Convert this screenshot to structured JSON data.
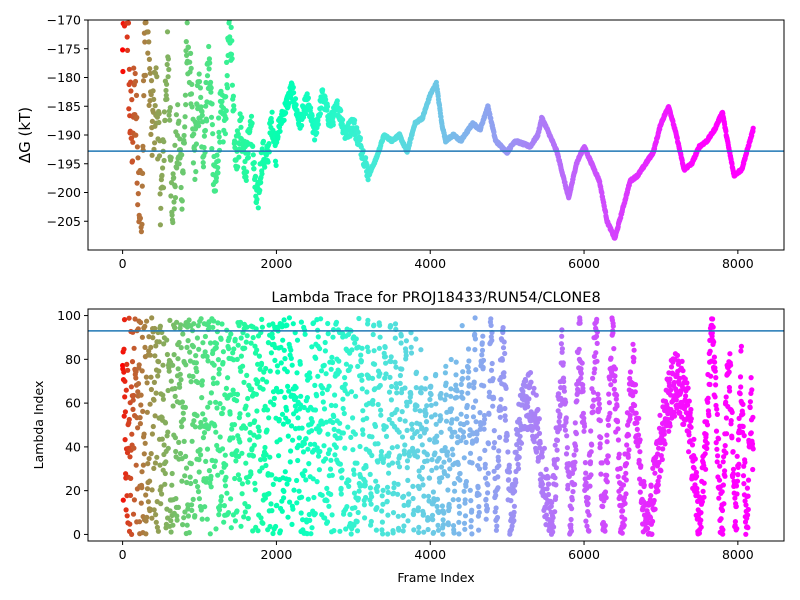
{
  "chart_data": [
    {
      "type": "scatter",
      "title": "",
      "xlabel": "",
      "ylabel": "ΔG (kT)",
      "xlim": [
        -450,
        8600
      ],
      "ylim": [
        -210,
        -170
      ],
      "xticks": [
        0,
        2000,
        4000,
        6000,
        8000
      ],
      "yticks": [
        -170,
        -175,
        -180,
        -185,
        -190,
        -195,
        -200,
        -205
      ],
      "xtick_labels": [
        "0",
        "2000",
        "4000",
        "6000",
        "8000"
      ],
      "ytick_labels": [
        "−170",
        "−175",
        "−180",
        "−185",
        "−190",
        "−195",
        "−200",
        "−205"
      ],
      "hline": -192.8,
      "hline_color": "#1f77b4",
      "colormap": "rainbow (red at frame 0 to purple at last frame)",
      "n_frames": 8200,
      "trace": [
        [
          0,
          -178
        ],
        [
          200,
          -190
        ],
        [
          400,
          -182
        ],
        [
          600,
          -195
        ],
        [
          800,
          -188
        ],
        [
          1000,
          -184
        ],
        [
          1200,
          -192
        ],
        [
          1400,
          -180
        ],
        [
          1600,
          -194
        ],
        [
          1800,
          -196
        ],
        [
          2000,
          -190
        ],
        [
          2100,
          -186
        ],
        [
          2200,
          -182
        ],
        [
          2300,
          -188
        ],
        [
          2400,
          -184
        ],
        [
          2500,
          -190
        ],
        [
          2600,
          -183
        ],
        [
          2700,
          -188
        ],
        [
          2800,
          -185
        ],
        [
          2900,
          -190
        ],
        [
          3000,
          -188
        ],
        [
          3100,
          -192
        ],
        [
          3200,
          -197
        ],
        [
          3300,
          -194
        ],
        [
          3400,
          -190
        ],
        [
          3500,
          -191
        ],
        [
          3600,
          -190
        ],
        [
          3700,
          -193
        ],
        [
          3800,
          -188
        ],
        [
          3900,
          -187
        ],
        [
          4000,
          -183
        ],
        [
          4080,
          -181
        ],
        [
          4150,
          -188
        ],
        [
          4200,
          -191
        ],
        [
          4300,
          -190
        ],
        [
          4400,
          -191
        ],
        [
          4550,
          -188
        ],
        [
          4650,
          -189
        ],
        [
          4750,
          -185
        ],
        [
          4850,
          -191
        ],
        [
          5000,
          -193
        ],
        [
          5100,
          -191
        ],
        [
          5300,
          -192
        ],
        [
          5400,
          -190
        ],
        [
          5450,
          -187
        ],
        [
          5520,
          -189
        ],
        [
          5650,
          -193
        ],
        [
          5800,
          -201
        ],
        [
          5900,
          -195
        ],
        [
          6000,
          -192
        ],
        [
          6100,
          -195
        ],
        [
          6200,
          -198
        ],
        [
          6300,
          -205
        ],
        [
          6400,
          -208
        ],
        [
          6500,
          -203
        ],
        [
          6600,
          -198
        ],
        [
          6700,
          -197
        ],
        [
          6900,
          -193
        ],
        [
          7000,
          -188
        ],
        [
          7100,
          -185
        ],
        [
          7200,
          -190
        ],
        [
          7300,
          -196
        ],
        [
          7400,
          -195
        ],
        [
          7500,
          -192
        ],
        [
          7600,
          -191
        ],
        [
          7700,
          -189
        ],
        [
          7800,
          -186
        ],
        [
          7850,
          -190
        ],
        [
          7950,
          -197
        ],
        [
          8050,
          -196
        ],
        [
          8200,
          -189
        ]
      ]
    },
    {
      "type": "scatter",
      "title": "Lambda Trace for PROJ18433/RUN54/CLONE8",
      "xlabel": "Frame Index",
      "ylabel": "Lambda Index",
      "xlim": [
        -450,
        8600
      ],
      "ylim": [
        -3,
        103
      ],
      "xticks": [
        0,
        2000,
        4000,
        6000,
        8000
      ],
      "yticks": [
        0,
        20,
        40,
        60,
        80,
        100
      ],
      "xtick_labels": [
        "0",
        "2000",
        "4000",
        "6000",
        "8000"
      ],
      "ytick_labels": [
        "0",
        "20",
        "40",
        "60",
        "80",
        "100"
      ],
      "hline": 93,
      "hline_color": "#1f77b4",
      "colormap": "rainbow (red at frame 0 to purple at last frame)",
      "n_frames": 8200,
      "lambda_range": [
        0,
        99
      ]
    }
  ]
}
